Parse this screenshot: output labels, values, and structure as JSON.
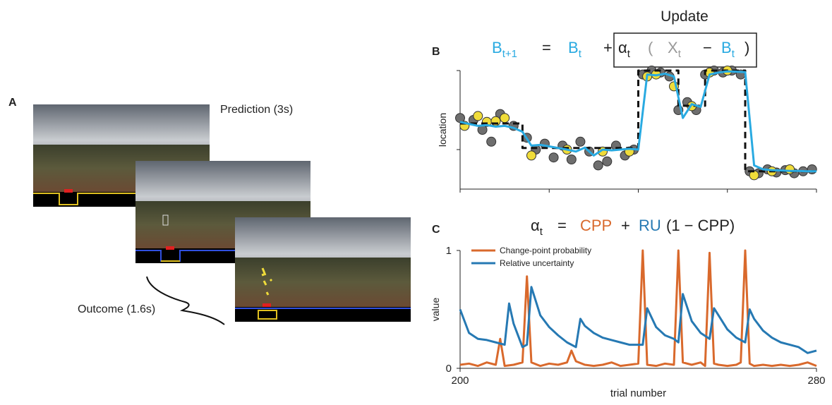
{
  "panel_a": {
    "label": "A",
    "prediction": "Prediction (3s)",
    "outcome": "Outcome (1.6s)"
  },
  "chart_data": [
    {
      "type": "line",
      "label": "B",
      "title": "Update",
      "equation": [
        {
          "text": "B",
          "sub": "t+1",
          "color": "#29aae1"
        },
        {
          "text": "=",
          "color": "#222222"
        },
        {
          "text": "B",
          "sub": "t",
          "color": "#29aae1"
        },
        {
          "text": "+",
          "color": "#222222"
        },
        {
          "text": "α",
          "sub": "t",
          "color": "#222222"
        },
        {
          "text": "(",
          "color": "#999999"
        },
        {
          "text": "X",
          "sub": "t",
          "color": "#999999"
        },
        {
          "text": "−",
          "color": "#222222"
        },
        {
          "text": "B",
          "sub": "t",
          "color": "#29aae1"
        },
        {
          "text": ")",
          "color": "#222222"
        }
      ],
      "ylabel": "location",
      "xlim": [
        200,
        280
      ],
      "xticks": [
        200,
        220,
        240,
        260,
        280
      ],
      "ylim": [
        0,
        300
      ],
      "yticks": [
        100,
        300
      ],
      "series": [
        {
          "mode": "points",
          "color": "#6e6e6e",
          "x": [
            200,
            203,
            205,
            207,
            209,
            212,
            215,
            217,
            219,
            221,
            223,
            225,
            227,
            229,
            231,
            233,
            235,
            237,
            239,
            241,
            243,
            245,
            247,
            249,
            251,
            253,
            255,
            257,
            259,
            261,
            263,
            265,
            267,
            269,
            271,
            273,
            275,
            277,
            279
          ],
          "values": [
            180,
            175,
            150,
            120,
            190,
            160,
            130,
            100,
            115,
            80,
            110,
            75,
            120,
            95,
            60,
            70,
            110,
            85,
            100,
            290,
            300,
            295,
            285,
            200,
            220,
            200,
            290,
            300,
            295,
            300,
            290,
            45,
            40,
            50,
            42,
            48,
            40,
            45,
            50
          ]
        },
        {
          "mode": "points",
          "color": "#f0dc3a",
          "x": [
            201,
            204,
            206,
            208,
            210,
            216,
            224,
            232,
            238,
            242,
            244,
            248,
            252,
            256,
            260,
            266,
            270,
            274
          ],
          "values": [
            160,
            185,
            170,
            172,
            180,
            85,
            100,
            95,
            95,
            285,
            290,
            260,
            210,
            295,
            300,
            35,
            45,
            50
          ]
        },
        {
          "mode": "line",
          "style": "dashed",
          "color": "#111111",
          "x": [
            200,
            214,
            214,
            240,
            240,
            249,
            249,
            255,
            255,
            264,
            264,
            280
          ],
          "values": [
            166,
            166,
            104,
            104,
            300,
            300,
            211,
            211,
            300,
            300,
            45,
            45
          ]
        },
        {
          "mode": "line",
          "style": "solid",
          "color": "#29aae1",
          "x": [
            200,
            202,
            204,
            206,
            208,
            210,
            212,
            214,
            216,
            218,
            220,
            222,
            224,
            226,
            228,
            230,
            232,
            234,
            236,
            238,
            240,
            242,
            244,
            246,
            248,
            250,
            252,
            254,
            256,
            258,
            260,
            262,
            264,
            266,
            268,
            270,
            272,
            274,
            276,
            278,
            280
          ],
          "values": [
            170,
            165,
            160,
            162,
            158,
            160,
            155,
            145,
            110,
            112,
            108,
            104,
            100,
            95,
            105,
            85,
            100,
            98,
            100,
            102,
            100,
            290,
            288,
            292,
            285,
            180,
            215,
            208,
            290,
            295,
            298,
            297,
            296,
            60,
            50,
            48,
            47,
            46,
            46,
            45,
            45
          ]
        }
      ]
    },
    {
      "type": "line",
      "label": "C",
      "equation": [
        {
          "text": "α",
          "sub": "t",
          "color": "#222222"
        },
        {
          "text": "=",
          "color": "#222222"
        },
        {
          "text": "CPP",
          "color": "#d9692c"
        },
        {
          "text": "+",
          "color": "#222222"
        },
        {
          "text": "RU",
          "color": "#2679b3"
        },
        {
          "text": "(1 − CPP)",
          "color": "#222222"
        }
      ],
      "xlabel": "trial number",
      "ylabel": "value",
      "xlim": [
        200,
        280
      ],
      "xticks": [
        200,
        280
      ],
      "ylim": [
        0,
        1
      ],
      "yticks": [
        0,
        1
      ],
      "series": [
        {
          "name": "Change-point probability",
          "color": "#d9692c",
          "x": [
            200,
            202,
            204,
            206,
            208,
            209,
            210,
            212,
            214,
            215,
            216,
            218,
            220,
            222,
            224,
            225,
            226,
            228,
            230,
            232,
            234,
            236,
            238,
            240,
            241,
            242,
            244,
            246,
            248,
            249,
            250,
            252,
            254,
            255,
            256,
            257,
            258,
            260,
            262,
            263,
            264,
            265,
            266,
            268,
            270,
            272,
            274,
            276,
            278,
            280
          ],
          "values": [
            0.03,
            0.04,
            0.02,
            0.05,
            0.03,
            0.25,
            0.02,
            0.03,
            0.05,
            0.78,
            0.05,
            0.02,
            0.04,
            0.03,
            0.05,
            0.15,
            0.06,
            0.03,
            0.02,
            0.03,
            0.05,
            0.02,
            0.03,
            0.04,
            1,
            0.03,
            0.02,
            0.04,
            0.03,
            1,
            0.05,
            0.03,
            0.05,
            0.02,
            0.98,
            0.04,
            0.03,
            0.02,
            0.03,
            0.05,
            1,
            0.04,
            0.02,
            0.03,
            0.02,
            0.03,
            0.02,
            0.03,
            0.05,
            0.02
          ]
        },
        {
          "name": "Relative uncertainty",
          "color": "#2679b3",
          "x": [
            200,
            202,
            204,
            206,
            208,
            210,
            211,
            212,
            214,
            215,
            216,
            218,
            220,
            222,
            224,
            226,
            227,
            228,
            230,
            232,
            234,
            236,
            238,
            240,
            241,
            242,
            244,
            246,
            248,
            249,
            250,
            252,
            254,
            256,
            257,
            258,
            260,
            262,
            264,
            265,
            266,
            268,
            270,
            272,
            274,
            276,
            278,
            280
          ],
          "values": [
            0.5,
            0.3,
            0.25,
            0.24,
            0.22,
            0.2,
            0.55,
            0.38,
            0.18,
            0.2,
            0.69,
            0.45,
            0.35,
            0.28,
            0.22,
            0.18,
            0.42,
            0.36,
            0.3,
            0.26,
            0.24,
            0.22,
            0.2,
            0.2,
            0.2,
            0.51,
            0.35,
            0.28,
            0.25,
            0.22,
            0.63,
            0.4,
            0.3,
            0.25,
            0.51,
            0.45,
            0.33,
            0.26,
            0.22,
            0.5,
            0.42,
            0.32,
            0.26,
            0.22,
            0.2,
            0.18,
            0.13,
            0.15
          ]
        }
      ]
    }
  ]
}
